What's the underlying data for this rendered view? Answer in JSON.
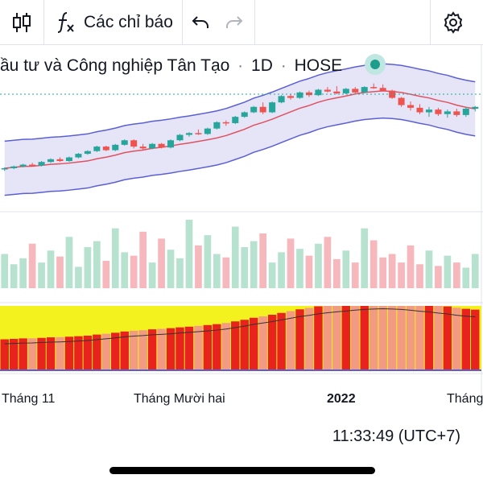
{
  "toolbar": {
    "indicators_label": "Các chỉ báo"
  },
  "legend": {
    "title": "ầu tư và Công nghiệp Tân Tạo",
    "interval": "1D",
    "exchange": "HOSE",
    "sep": "·"
  },
  "time_axis": {
    "labels": [
      "Tháng 11",
      "Tháng Mười hai",
      "2022",
      "Tháng"
    ]
  },
  "status": {
    "time": "11:33:49 (UTC+7)"
  },
  "colors": {
    "up": "#26a69a",
    "down": "#ef5350",
    "band_fill": "#e6e4f7",
    "band_line": "#5b5fd6",
    "ma_line": "#e05260",
    "vol_up": "#b8e2d0",
    "vol_down": "#f6b8bd",
    "osc_red": "#e8231e",
    "osc_salmon": "#f39a83",
    "osc_yellow": "#f3f21e",
    "osc_green": "#7edc6a",
    "status_dot": "#1e9c8c"
  },
  "icons": [
    "bar-chart-icon",
    "function-icon",
    "undo-icon",
    "redo-icon",
    "gear-icon"
  ],
  "chart_data": {
    "type": "candlestick",
    "candles": [
      [
        27,
        27.2,
        26.8,
        27.1
      ],
      [
        27.1,
        27.4,
        27,
        27.3
      ],
      [
        27.3,
        27.6,
        27.2,
        27.5
      ],
      [
        27.5,
        27.7,
        27.3,
        27.4
      ],
      [
        27.4,
        27.9,
        27.3,
        27.8
      ],
      [
        27.8,
        28.2,
        27.7,
        28.1
      ],
      [
        28.1,
        28.3,
        27.8,
        27.9
      ],
      [
        27.9,
        28.4,
        27.8,
        28.3
      ],
      [
        28.3,
        28.8,
        28.2,
        28.7
      ],
      [
        28.7,
        29.1,
        28.6,
        29
      ],
      [
        29,
        29.6,
        28.9,
        29.5
      ],
      [
        29.5,
        29.6,
        29,
        29.1
      ],
      [
        29.1,
        29.8,
        29,
        29.7
      ],
      [
        29.7,
        30.3,
        29.6,
        30.2
      ],
      [
        30.2,
        30.3,
        29.3,
        29.5
      ],
      [
        29.5,
        29.8,
        29.1,
        29.3
      ],
      [
        29.3,
        29.9,
        29.2,
        29.8
      ],
      [
        29.8,
        29.9,
        29.3,
        29.4
      ],
      [
        29.4,
        30.3,
        29.3,
        30.2
      ],
      [
        30.2,
        30.9,
        30.1,
        30.8
      ],
      [
        30.8,
        31.1,
        30.6,
        31
      ],
      [
        31,
        31.4,
        30.8,
        30.9
      ],
      [
        30.9,
        31.6,
        30.8,
        31.5
      ],
      [
        31.5,
        32.3,
        31.4,
        32.2
      ],
      [
        32.2,
        32.4,
        31.8,
        32.1
      ],
      [
        32.1,
        32.9,
        32,
        32.8
      ],
      [
        32.8,
        33.4,
        32.7,
        33.3
      ],
      [
        33.3,
        34,
        33.2,
        33.9
      ],
      [
        33.9,
        34.4,
        33.1,
        33.3
      ],
      [
        33.3,
        34.5,
        33.2,
        34.4
      ],
      [
        34.4,
        35.2,
        34.3,
        35.1
      ],
      [
        35.1,
        35.3,
        34.7,
        34.9
      ],
      [
        34.9,
        35.6,
        34.8,
        35.5
      ],
      [
        35.5,
        35.7,
        35,
        35.2
      ],
      [
        35.2,
        35.9,
        35.1,
        35.8
      ],
      [
        35.8,
        36.1,
        35.5,
        35.6
      ],
      [
        35.6,
        36.2,
        35.3,
        35.4
      ],
      [
        35.4,
        36,
        35.3,
        35.9
      ],
      [
        35.9,
        36.1,
        35.4,
        35.5
      ],
      [
        35.5,
        36.2,
        35.4,
        36.1
      ],
      [
        36.1,
        36.5,
        35.9,
        36
      ],
      [
        36,
        36.4,
        35.6,
        35.7
      ],
      [
        35.7,
        35.8,
        34.8,
        34.9
      ],
      [
        34.9,
        35,
        33.9,
        34.1
      ],
      [
        34.1,
        34.5,
        33.5,
        33.8
      ],
      [
        33.8,
        34.2,
        33.1,
        33.3
      ],
      [
        33.3,
        33.9,
        32.8,
        33.6
      ],
      [
        33.6,
        33.8,
        32.9,
        33.1
      ],
      [
        33.1,
        33.6,
        32.7,
        33.4
      ],
      [
        33.4,
        33.7,
        32.8,
        33
      ],
      [
        33,
        33.9,
        32.8,
        33.7
      ],
      [
        33.7,
        34,
        33.4,
        33.9
      ]
    ],
    "volumes": [
      40,
      28,
      35,
      52,
      30,
      44,
      37,
      60,
      25,
      48,
      55,
      32,
      70,
      42,
      38,
      66,
      30,
      58,
      45,
      35,
      80,
      50,
      62,
      40,
      36,
      72,
      48,
      55,
      64,
      30,
      42,
      58,
      46,
      38,
      52,
      60,
      34,
      44,
      30,
      70,
      56,
      36,
      40,
      30,
      50,
      28,
      44,
      26,
      38,
      30,
      24,
      40
    ],
    "bollinger": {
      "upper_offset": 3.0,
      "lower_offset": 3.0
    },
    "xlabel": "",
    "ylabel": ""
  }
}
